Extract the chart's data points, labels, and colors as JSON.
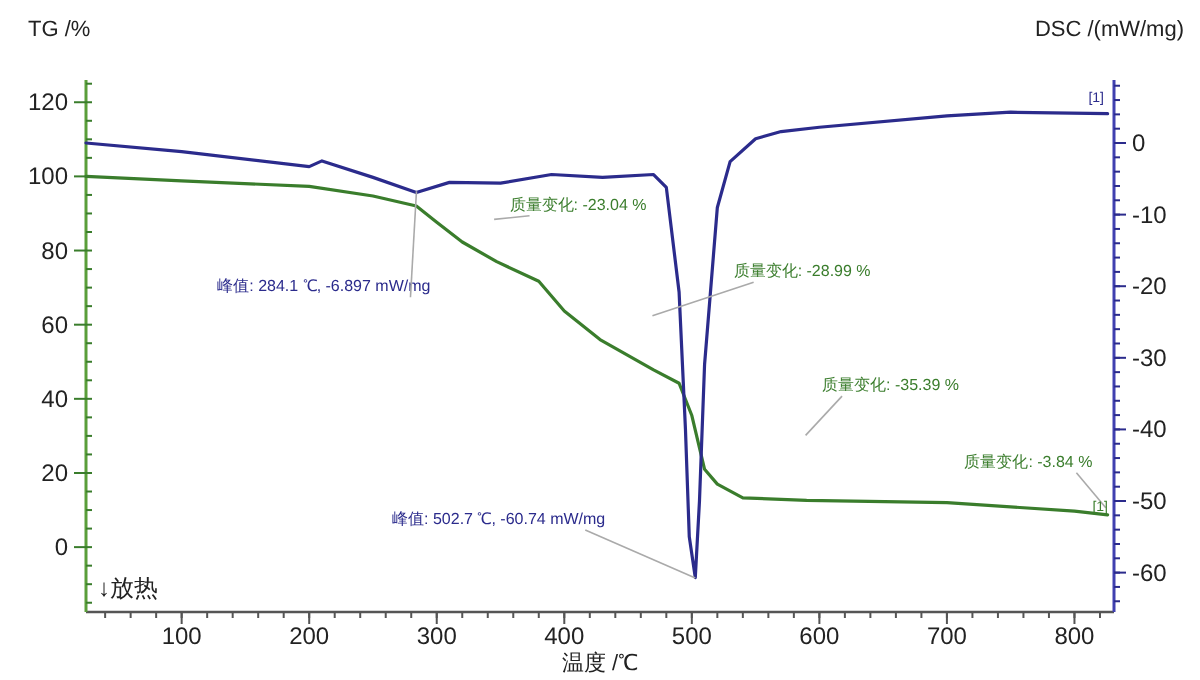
{
  "chart_data": {
    "type": "line",
    "xlabel": "温度 /℃",
    "ylabel": "TG /%",
    "y2label": "DSC /(mW/mg)",
    "xlim": [
      25,
      831
    ],
    "xticks": [
      100,
      200,
      300,
      400,
      500,
      600,
      700,
      800
    ],
    "ylim": [
      -17.5,
      126
    ],
    "yticks": [
      0,
      20,
      40,
      60,
      80,
      100,
      120
    ],
    "y2lim": [
      -65.5,
      8.8
    ],
    "y2ticks": [
      -60,
      -50,
      -40,
      -30,
      -20,
      -10,
      0
    ],
    "grid": false,
    "series": [
      {
        "color": "#3a7d2c",
        "x": [
          25,
          100,
          200,
          250,
          284,
          300,
          320,
          347,
          380,
          400,
          428,
          470,
          490,
          500,
          510,
          520,
          540,
          590,
          700,
          800,
          826
        ],
        "values": [
          100,
          98.8,
          97.3,
          94.7,
          92,
          87.6,
          82.3,
          77,
          71.7,
          63.7,
          56,
          47.8,
          44.2,
          35.5,
          21,
          17,
          13.3,
          12.6,
          12,
          9.7,
          8.7
        ]
      },
      {
        "color": "#2b2b8c",
        "axis": "y2",
        "x": [
          25,
          100,
          200,
          210,
          250,
          284,
          310,
          350,
          390,
          430,
          470,
          480,
          490,
          495,
          498,
          502.7,
          506,
          510,
          520,
          530,
          550,
          570,
          600,
          700,
          750,
          826
        ],
        "values": [
          0,
          -1.2,
          -3.3,
          -2.5,
          -4.8,
          -6.9,
          -5.5,
          -5.6,
          -4.4,
          -4.8,
          -4.4,
          -6.2,
          -20.8,
          -40,
          -55,
          -60.7,
          -50,
          -30.9,
          -9,
          -2.6,
          0.6,
          1.6,
          2.2,
          3.8,
          4.3,
          4.1
        ]
      }
    ],
    "annotations": [
      {
        "text": "峰值: 284.1 ℃, -6.897 mW/mg",
        "x": 284.1,
        "y": 96
      },
      {
        "text": "峰值: 502.7 ℃, -60.74 mW/mg",
        "x": 502.7,
        "y": -8.3
      },
      "质量变化: -23.04 %",
      "质量变化: -28.99 %",
      "质量变化: -35.39 %",
      "质量变化: -3.84 %",
      "↓放热",
      "[1]",
      "[1]"
    ]
  }
}
